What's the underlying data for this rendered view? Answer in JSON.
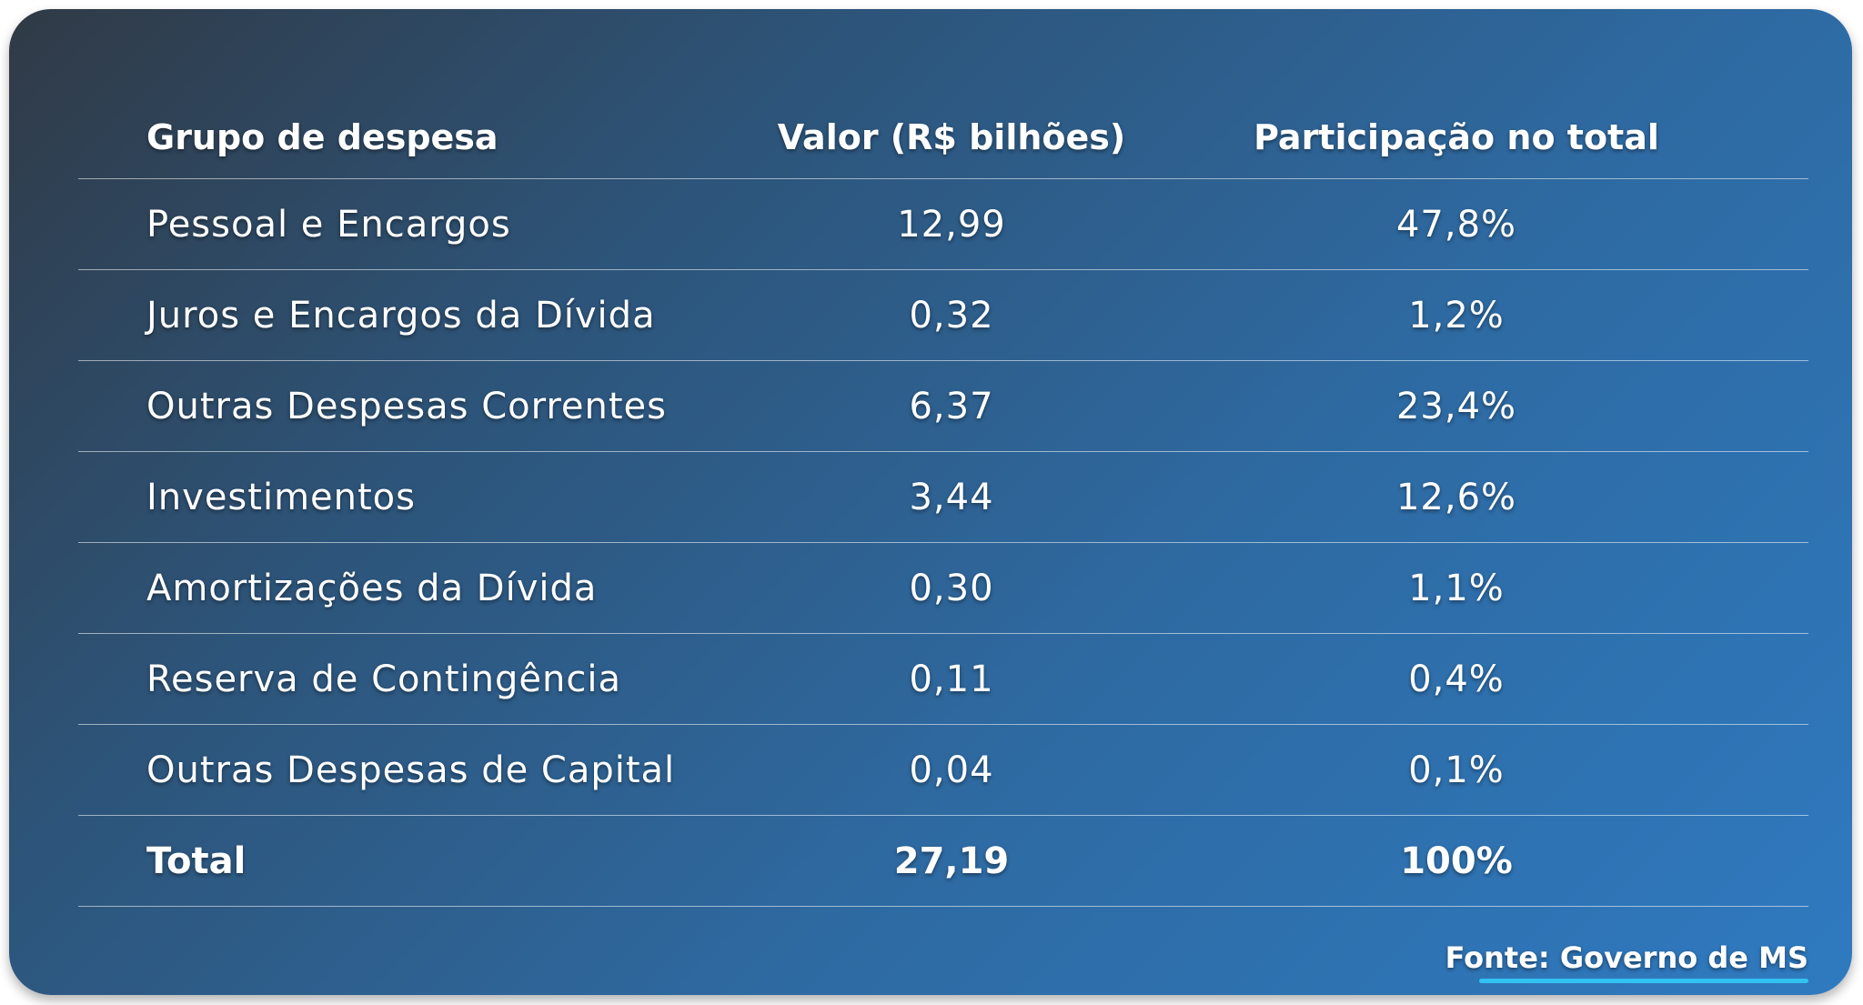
{
  "table": {
    "headers": [
      "Grupo de despesa",
      "Valor (R$ bilhões)",
      "Participação no total"
    ],
    "rows": [
      {
        "grupo": "Pessoal e Encargos",
        "valor": "12,99",
        "participacao": "47,8%"
      },
      {
        "grupo": "Juros e Encargos da Dívida",
        "valor": "0,32",
        "participacao": "1,2%"
      },
      {
        "grupo": "Outras Despesas Correntes",
        "valor": "6,37",
        "participacao": "23,4%"
      },
      {
        "grupo": "Investimentos",
        "valor": "3,44",
        "participacao": "12,6%"
      },
      {
        "grupo": "Amortizações da Dívida",
        "valor": "0,30",
        "participacao": "1,1%"
      },
      {
        "grupo": "Reserva de Contingência",
        "valor": "0,11",
        "participacao": "0,4%"
      },
      {
        "grupo": "Outras Despesas de Capital",
        "valor": "0,04",
        "participacao": "0,1%"
      }
    ],
    "total": {
      "grupo": "Total",
      "valor": "27,19",
      "participacao": "100%"
    }
  },
  "source": "Fonte: Governo de MS",
  "colors": {
    "gradient_start": "#303a46",
    "gradient_end": "#2f7ac0",
    "accent_underline": "#31c2f2",
    "text": "#ffffff"
  }
}
